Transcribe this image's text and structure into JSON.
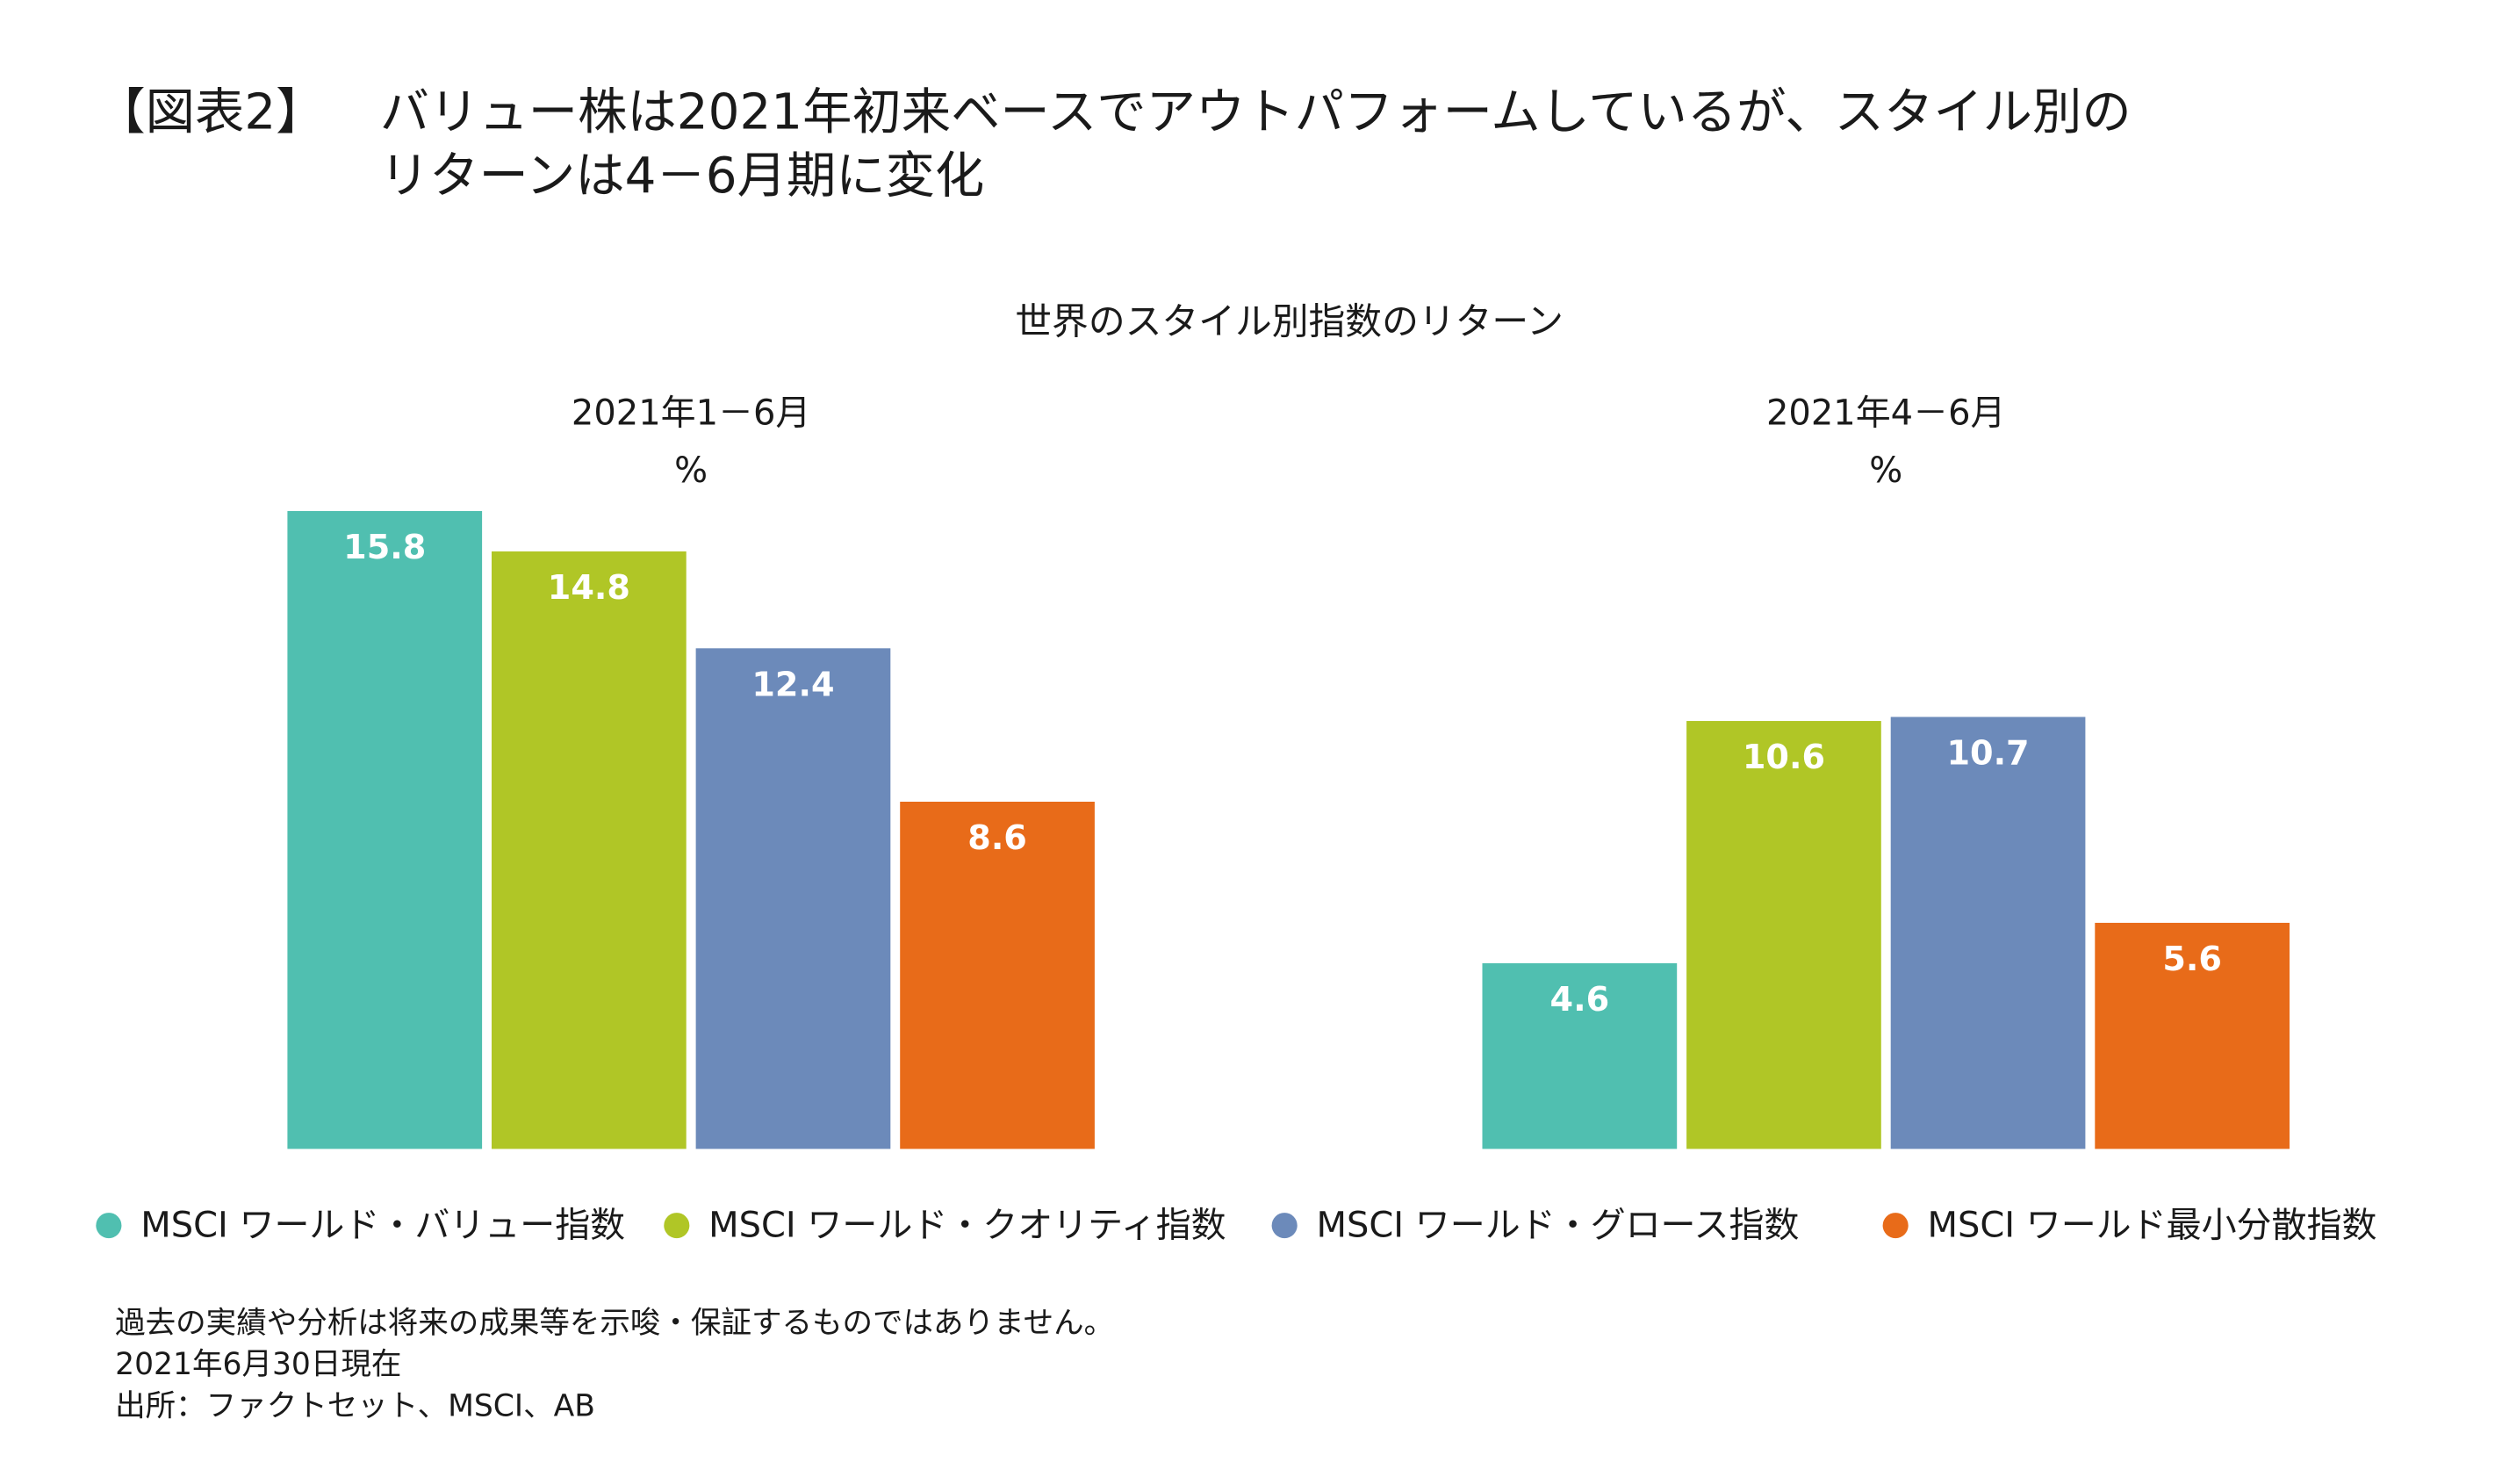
{
  "header": {
    "label": "【図表2】",
    "title_lines": [
      "バリュー株は2021年初来ベースでアウトパフォームしているが、スタイル別の",
      "リターンは4－6月期に変化"
    ]
  },
  "figure_title": "世界のスタイル別指数のリターン",
  "chart_data": [
    {
      "type": "bar",
      "title": "2021年1－6月",
      "unit": "%",
      "series": [
        {
          "name": "MSCI ワールド・バリュー指数",
          "color": "#50bfb0",
          "values": [
            15.8
          ]
        },
        {
          "name": "MSCI ワールド・クオリティ指数",
          "color": "#b0c626",
          "values": [
            14.8
          ]
        },
        {
          "name": "MSCI ワールド・グロース指数",
          "color": "#6c8aba",
          "values": [
            12.4
          ]
        },
        {
          "name": "MSCI ワールド最小分散指数",
          "color": "#e86b19",
          "values": [
            8.6
          ]
        }
      ]
    },
    {
      "type": "bar",
      "title": "2021年4－6月",
      "unit": "%",
      "series": [
        {
          "color": "#50bfb0",
          "values": [
            4.6
          ]
        },
        {
          "color": "#b0c626",
          "values": [
            10.6
          ]
        },
        {
          "color": "#6c8aba",
          "values": [
            10.7
          ]
        },
        {
          "color": "#e86b19",
          "values": [
            5.6
          ]
        }
      ]
    }
  ],
  "notes": [
    "過去の実績や分析は将来の成果等を示唆・保証するものではありません。",
    "2021年6月30日現在",
    "出所：ファクトセット、MSCI、AB"
  ]
}
